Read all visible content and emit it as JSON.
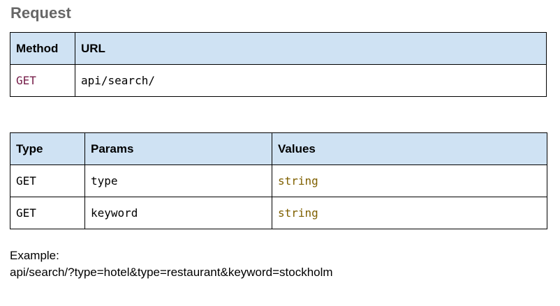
{
  "heading": "Request",
  "request_table": {
    "headers": [
      "Method",
      "URL"
    ],
    "row": {
      "method": "GET",
      "url": "api/search/"
    }
  },
  "params_table": {
    "headers": [
      "Type",
      "Params",
      "Values"
    ],
    "rows": [
      {
        "type": "GET",
        "param": "type",
        "value": "string"
      },
      {
        "type": "GET",
        "param": "keyword",
        "value": "string"
      }
    ]
  },
  "example": {
    "label": "Example:",
    "text": "api/search/?type=hotel&type=restaurant&keyword=stockholm"
  },
  "colors": {
    "header_bg": "#cfe2f3",
    "heading_text": "#666666",
    "method_get": "#741b47",
    "string_value": "#7f6000"
  }
}
